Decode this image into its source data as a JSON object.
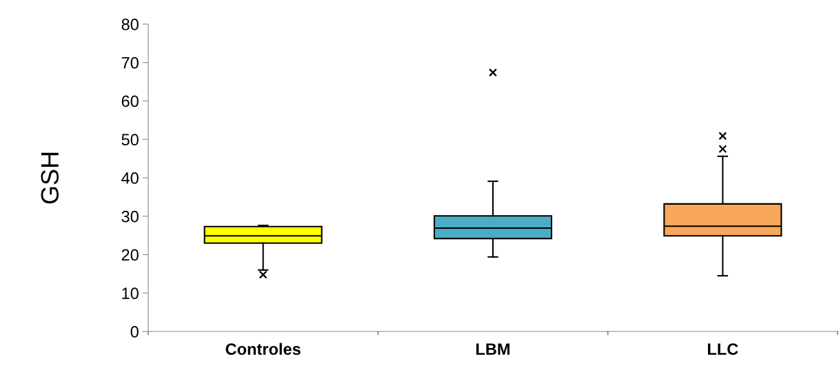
{
  "chart_data": {
    "type": "box",
    "ylabel": "GSH",
    "categories": [
      "Controles",
      "LBM",
      "LLC"
    ],
    "colors": [
      "#ffff00",
      "#4bacc6",
      "#f9a85a"
    ],
    "boxes": [
      {
        "low": 16.0,
        "q1": 23.0,
        "median": 24.9,
        "q3": 27.3,
        "high": 27.6,
        "outliers": [
          14.8
        ]
      },
      {
        "low": 19.4,
        "q1": 24.2,
        "median": 26.9,
        "q3": 30.1,
        "high": 39.1,
        "outliers": [
          67.4
        ]
      },
      {
        "low": 14.5,
        "q1": 24.9,
        "median": 27.4,
        "q3": 33.2,
        "high": 45.6,
        "outliers": [
          47.5,
          50.9
        ]
      }
    ],
    "ylim": [
      0,
      80
    ],
    "yticks": [
      0,
      10,
      20,
      30,
      40,
      50,
      60,
      70,
      80
    ],
    "grid": false,
    "marker": "cross"
  }
}
